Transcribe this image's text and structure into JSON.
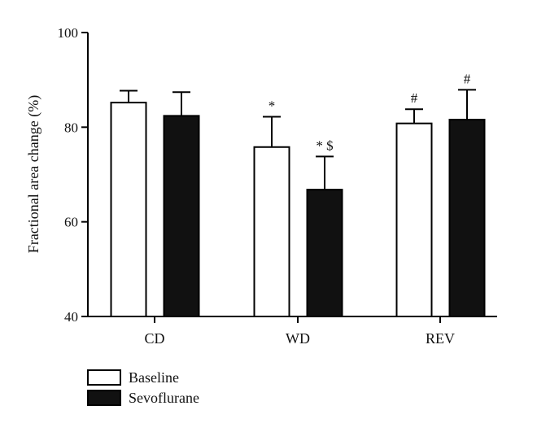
{
  "chart_data": {
    "type": "bar",
    "title": "",
    "xlabel": "",
    "ylabel": "Fractional area change (%)",
    "ylim": [
      40,
      100
    ],
    "yticks": [
      40,
      60,
      80,
      100
    ],
    "grid": false,
    "legend_position": "bottom-left",
    "categories": [
      "CD",
      "WD",
      "REV"
    ],
    "series": [
      {
        "name": "Baseline",
        "fill": "#ffffff",
        "stroke": "#000000",
        "values": [
          85.2,
          75.8,
          80.8
        ],
        "errors": [
          2.5,
          6.4,
          3.0
        ],
        "annotations": [
          "",
          "*",
          "#"
        ]
      },
      {
        "name": "Sevoflurane",
        "fill": "#111111",
        "stroke": "#000000",
        "values": [
          82.4,
          66.8,
          81.6
        ],
        "errors": [
          5.0,
          7.0,
          6.3
        ],
        "annotations": [
          "",
          "* $",
          "#"
        ]
      }
    ]
  }
}
